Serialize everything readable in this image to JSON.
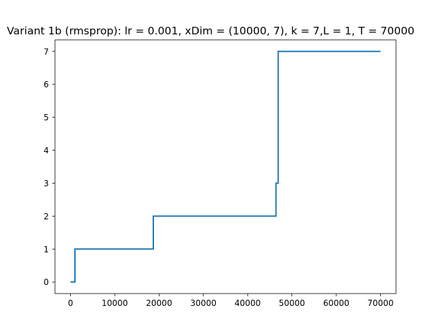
{
  "chart_data": {
    "type": "line",
    "title": "Variant 1b (rmsprop): lr = 0.001, xDim = (10000, 7), k = 7,L = 1, T = 70000",
    "xlabel": "",
    "ylabel": "",
    "xlim": [
      -3500,
      73500
    ],
    "ylim": [
      -0.35,
      7.35
    ],
    "x_ticks": [
      0,
      10000,
      20000,
      30000,
      40000,
      50000,
      60000,
      70000
    ],
    "x_tick_labels": [
      "0",
      "10000",
      "20000",
      "30000",
      "40000",
      "50000",
      "60000",
      "70000"
    ],
    "y_ticks": [
      0,
      1,
      2,
      3,
      4,
      5,
      6,
      7
    ],
    "y_tick_labels": [
      "0",
      "1",
      "2",
      "3",
      "4",
      "5",
      "6",
      "7"
    ],
    "grid": false,
    "legend": "none",
    "series": [
      {
        "color": "#1f77b4",
        "step": true,
        "x": [
          0,
          1000,
          1000,
          18700,
          18700,
          46400,
          46400,
          46900,
          46900,
          70000
        ],
        "y": [
          0,
          0,
          1,
          1,
          2,
          2,
          3,
          3,
          7,
          7
        ]
      }
    ]
  }
}
